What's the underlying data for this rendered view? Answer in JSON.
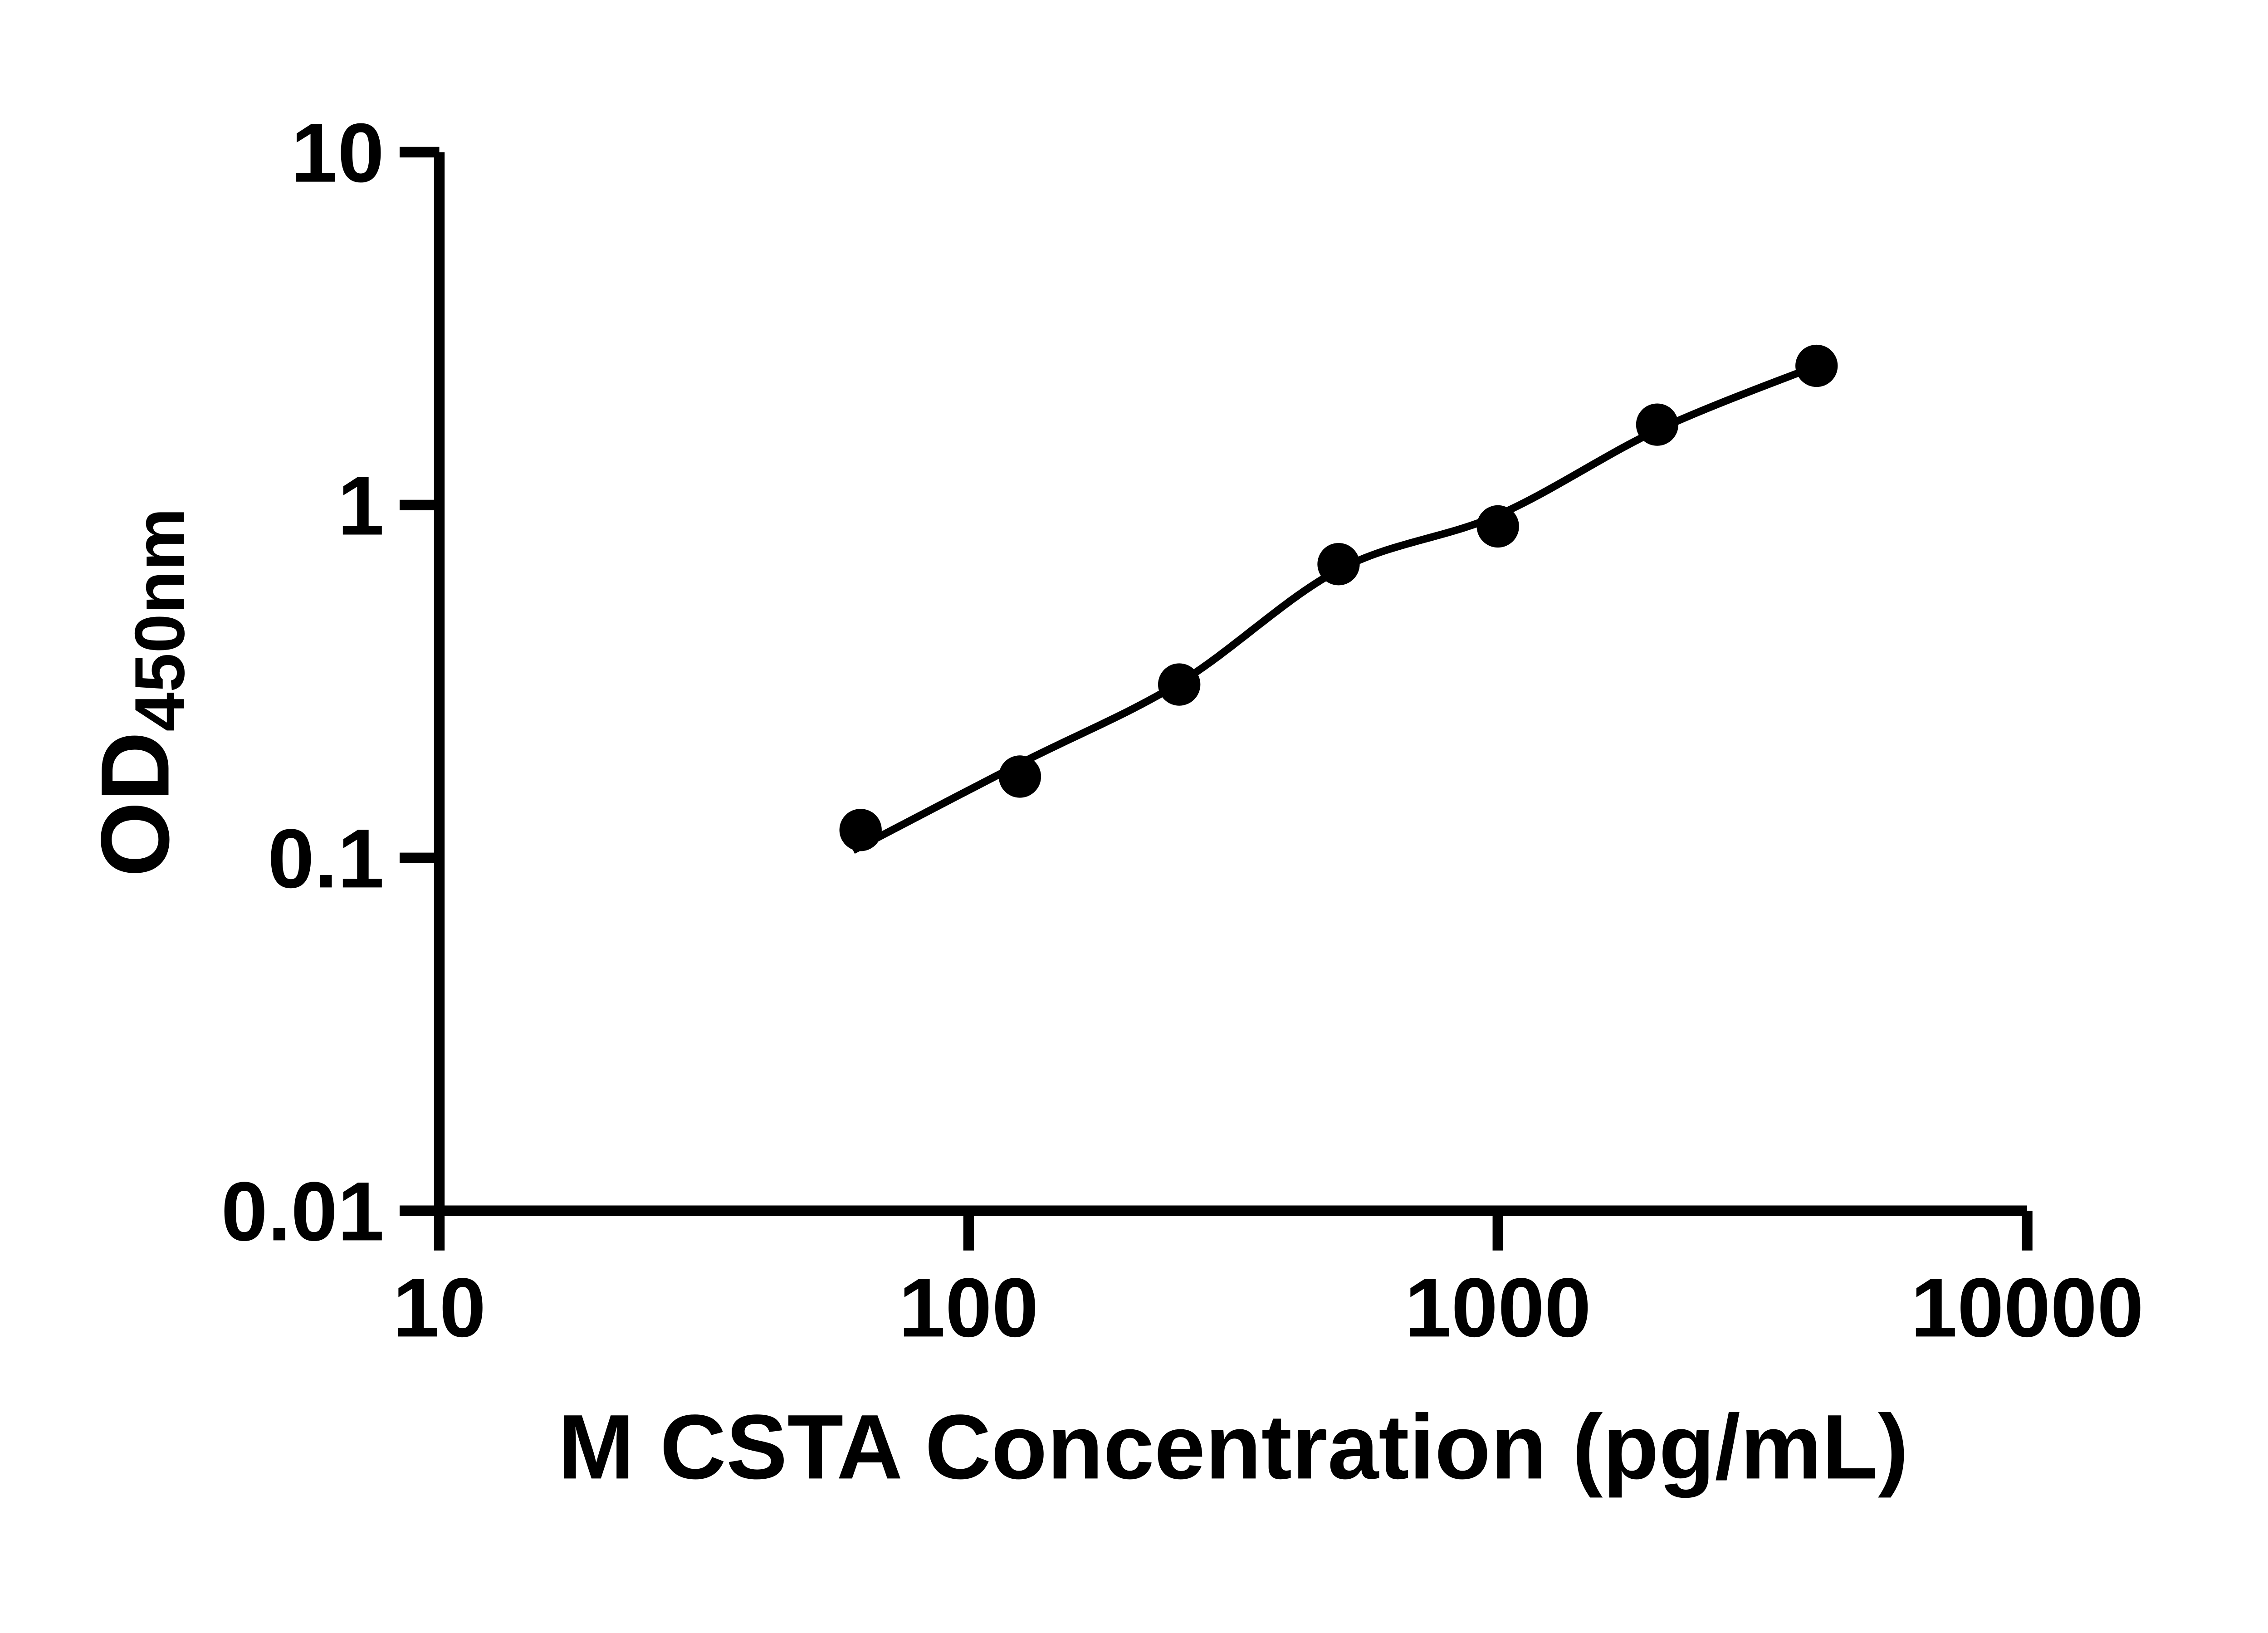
{
  "figure": {
    "background_color": "#ffffff",
    "ink_color": "#000000"
  },
  "chart_data": {
    "type": "scatter",
    "title": "",
    "xlabel": "M CSTA Concentration (pg/mL)",
    "ylabel_main": "OD",
    "ylabel_sub": "450nm",
    "x_scale": "log10",
    "y_scale": "log10",
    "xlim": [
      10,
      10000
    ],
    "ylim": [
      0.01,
      10
    ],
    "grid": false,
    "legend": "none",
    "x_ticks": [
      {
        "value": 10,
        "label": "10"
      },
      {
        "value": 100,
        "label": "100"
      },
      {
        "value": 1000,
        "label": "1000"
      },
      {
        "value": 10000,
        "label": "10000"
      }
    ],
    "y_ticks": [
      {
        "value": 10,
        "label": "10"
      },
      {
        "value": 1,
        "label": "1"
      },
      {
        "value": 0.1,
        "label": "0.1"
      },
      {
        "value": 0.01,
        "label": "0.01"
      }
    ],
    "series": [
      {
        "name": "standard-points",
        "marker": "filled-circle",
        "color": "#000000",
        "points": [
          {
            "x": 62.5,
            "y": 0.12
          },
          {
            "x": 125,
            "y": 0.17
          },
          {
            "x": 250,
            "y": 0.31
          },
          {
            "x": 500,
            "y": 0.68
          },
          {
            "x": 1000,
            "y": 0.87
          },
          {
            "x": 2000,
            "y": 1.69
          },
          {
            "x": 4000,
            "y": 2.48
          }
        ]
      }
    ],
    "fit_curve": {
      "name": "4PL-fit",
      "color": "#000000",
      "points": [
        [
          60.5,
          0.105
        ],
        [
          125,
          0.185
        ],
        [
          250,
          0.313
        ],
        [
          500,
          0.655
        ],
        [
          1000,
          0.936
        ],
        [
          2000,
          1.63
        ],
        [
          4000,
          2.48
        ]
      ]
    }
  }
}
